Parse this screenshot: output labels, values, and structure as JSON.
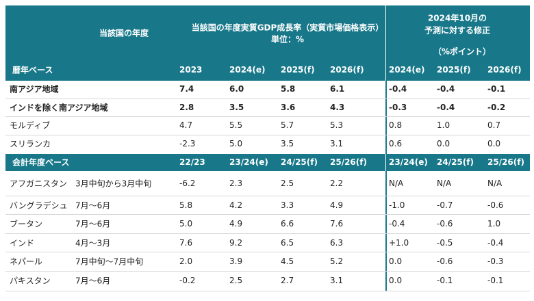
{
  "header": {
    "country_fy_label": "当該国の年度",
    "growth_title": "当該国の年度実質GDP成長率（実質市場価格表示）",
    "unit": "単位：%",
    "revision_title_1": "2024年10月の",
    "revision_title_2": "予測に対する修正",
    "revision_unit": "（%ポイント）"
  },
  "calendar_header": {
    "label": "暦年ベース",
    "columns": [
      "2023",
      "2024(e)",
      "2025(f)",
      "2026(f)",
      "2024(e)",
      "2025(f)",
      "2026(f)"
    ]
  },
  "calendar_rows": [
    {
      "name": "南アジア地域",
      "cells": [
        "7.4",
        "6.0",
        "5.8",
        "6.1",
        "-0.4",
        "-0.4",
        "-0.1"
      ]
    },
    {
      "name": "インドを除く南アジア地域",
      "cells": [
        "2.8",
        "3.5",
        "3.6",
        "4.3",
        "-0.3",
        "-0.4",
        "-0.2"
      ]
    },
    {
      "name": "モルディブ",
      "cells": [
        "4.7",
        "5.5",
        "5.7",
        "5.3",
        "0.8",
        "1.0",
        "0.7"
      ]
    },
    {
      "name": "スリランカ",
      "cells": [
        "-2.3",
        "5.0",
        "3.5",
        "3.1",
        "0.6",
        "0.0",
        "0.0"
      ]
    }
  ],
  "fiscal_header": {
    "label": "会計年度ベース",
    "columns": [
      "22/23",
      "23/24(e)",
      "24/25(f)",
      "25/26(f)",
      "23/24(e)",
      "24/25(f)",
      "25/26(f)"
    ]
  },
  "fiscal_rows": [
    {
      "name": "アフガニスタン",
      "period": "3月中旬から3月中旬",
      "cells": [
        "-6.2",
        "2.3",
        "2.5",
        "2.2",
        "N/A",
        "N/A",
        "N/A"
      ]
    },
    {
      "name": "バングラデシュ",
      "period": "7月～6月",
      "cells": [
        "5.8",
        "4.2",
        "3.3",
        "4.9",
        "-1.0",
        "-0.7",
        "-0.6"
      ]
    },
    {
      "name": "ブータン",
      "period": "7月～6月",
      "cells": [
        "5.0",
        "4.9",
        "6.6",
        "7.6",
        "-0.4",
        "-0.6",
        "1.0"
      ]
    },
    {
      "name": "インド",
      "period": "4月～3月",
      "cells": [
        "7.6",
        "9.2",
        "6.5",
        "6.3",
        "+1.0",
        "-0.5",
        "-0.4"
      ]
    },
    {
      "name": "ネパール",
      "period": "7月中旬～7月中旬",
      "cells": [
        "2.0",
        "3.9",
        "4.5",
        "5.2",
        "0.0",
        "-0.6",
        "-0.3"
      ]
    },
    {
      "name": "パキスタン",
      "period": "7月～6月",
      "cells": [
        "-0.2",
        "2.5",
        "2.7",
        "3.1",
        "0.0",
        "-0.1",
        "-0.1"
      ]
    }
  ]
}
